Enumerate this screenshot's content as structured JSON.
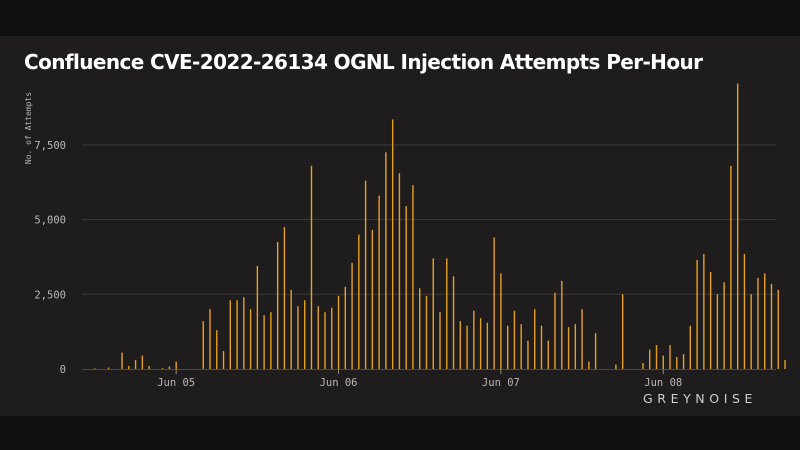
{
  "chart_data": {
    "type": "bar",
    "title": "Confluence CVE-2022-26134 OGNL Injection Attempts Per-Hour",
    "ylabel": "No. of Attempts",
    "xlabel": "",
    "ylim": [
      0,
      9000
    ],
    "yticks": [
      0,
      2500,
      5000,
      7500
    ],
    "ytick_labels": [
      "0",
      "2,500",
      "5,000",
      "7,500"
    ],
    "x_range": [
      0,
      100
    ],
    "xticks": [
      {
        "x": 12,
        "label": "Jun 05"
      },
      {
        "x": 36,
        "label": "Jun 06"
      },
      {
        "x": 60,
        "label": "Jun 07"
      },
      {
        "x": 84,
        "label": "Jun 08"
      }
    ],
    "grid": true,
    "bar_color": "#e8a020",
    "values": [
      20,
      0,
      50,
      0,
      550,
      100,
      300,
      450,
      100,
      0,
      30,
      80,
      250,
      0,
      0,
      0,
      1600,
      2000,
      1300,
      600,
      2300,
      2300,
      2400,
      2000,
      3450,
      1800,
      1900,
      4250,
      4750,
      2650,
      2100,
      2300,
      6800,
      2100,
      1900,
      2050,
      2450,
      2750,
      3550,
      4500,
      6300,
      4650,
      5800,
      7250,
      8350,
      6550,
      5450,
      6150,
      2700,
      2450,
      3700,
      1900,
      3700,
      3100,
      1600,
      1450,
      1950,
      1700,
      1550,
      4400,
      3200,
      1450,
      1950,
      1500,
      950,
      2000,
      1450,
      950,
      2550,
      2950,
      1400,
      1500,
      2000,
      250,
      1200,
      0,
      0,
      150,
      2500,
      0,
      0,
      200,
      650,
      800,
      450,
      800,
      400,
      500,
      1450,
      3650,
      3850,
      3250,
      2500,
      2900,
      6800,
      9550,
      3850,
      2500,
      3050,
      3200,
      2850,
      2650,
      300
    ]
  },
  "branding": {
    "logo_text": "GREYNOISE"
  }
}
